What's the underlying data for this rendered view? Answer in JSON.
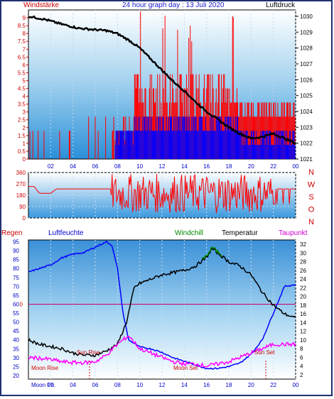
{
  "header": {
    "title": "24 hour graph day : 13 Juli 2020",
    "left_label": "Windstärke",
    "right_label": "Luftdruck"
  },
  "mid": {
    "directions": [
      "N",
      "W",
      "S",
      "O",
      "N"
    ]
  },
  "bottom_labels": {
    "regen": "Regen",
    "luftfeuchte": "Luftfeuchte",
    "windchill": "Windchill",
    "temperatur": "Temperatur",
    "taupunkt": "Taupunkt",
    "sun_rise": "Sun Rise",
    "sun_set": "Sun Set",
    "moon_rise": "Moon Rise",
    "moon_set": "Moon Set",
    "moon_phase": "Moon Ph."
  },
  "colors": {
    "wind_labels": "#cc0000",
    "title": "#1a1acc",
    "wind_gust": "#ff0000",
    "wind_avg": "#0000ff",
    "pressure": "#000000",
    "humidity": "#0000ff",
    "temperature": "#000000",
    "dewpoint": "#ff00ff",
    "windchill": "#008800",
    "zero_line": "#cc0066"
  },
  "chart_data": [
    {
      "type": "line",
      "name": "wind_and_pressure",
      "x_ticks": [
        "02",
        "04",
        "06",
        "08",
        "10",
        "12",
        "14",
        "16",
        "18",
        "20",
        "22",
        "00"
      ],
      "y_left_ticks": [
        "0",
        "0.5",
        "1",
        "1.5",
        "2",
        "2.5",
        "3",
        "3.5",
        "4",
        "4.5",
        "5",
        "5.5",
        "6",
        "6.5",
        "7",
        "7.5",
        "8",
        "8.5",
        "9"
      ],
      "y_left_lim": [
        0,
        9.5
      ],
      "y_right_ticks": [
        "1021",
        "1022",
        "1023",
        "1024",
        "1025",
        "1026",
        "1027",
        "1028",
        "1029",
        "1030"
      ],
      "y_right_lim": [
        1021,
        1030.4
      ],
      "series": [
        {
          "axis": "right",
          "points": [
            [
              0,
              1030
            ],
            [
              1.5,
              1029.8
            ],
            [
              3,
              1029.5
            ],
            [
              4.5,
              1029.25
            ],
            [
              6,
              1029.15
            ],
            [
              7,
              1029.1
            ],
            [
              8,
              1028.9
            ],
            [
              9,
              1028.5
            ],
            [
              10,
              1028.0
            ],
            [
              11,
              1027.3
            ],
            [
              12,
              1026.6
            ],
            [
              13,
              1025.9
            ],
            [
              14,
              1025.3
            ],
            [
              15,
              1024.6
            ],
            [
              16,
              1024.0
            ],
            [
              17,
              1023.5
            ],
            [
              18,
              1023.0
            ],
            [
              19,
              1022.6
            ],
            [
              20,
              1022.3
            ],
            [
              21,
              1022.4
            ],
            [
              22,
              1022.6
            ],
            [
              23,
              1022.3
            ],
            [
              24,
              1022.0
            ]
          ]
        }
      ]
    },
    {
      "type": "line",
      "name": "wind_direction",
      "y_ticks": [
        "0",
        "90",
        "180",
        "270",
        "360"
      ],
      "y_lim": [
        0,
        360
      ],
      "series": [
        {
          "points": [
            [
              0,
              250
            ],
            [
              0.5,
              250
            ],
            [
              1,
              195
            ],
            [
              2,
              195
            ],
            [
              2.5,
              230
            ],
            [
              7.4,
              230
            ],
            [
              7.5,
              230
            ],
            [
              8,
              90
            ],
            [
              9,
              330
            ],
            [
              10,
              60
            ],
            [
              11,
              300
            ],
            [
              12,
              90
            ],
            [
              13,
              270
            ],
            [
              14,
              60
            ],
            [
              15,
              330
            ],
            [
              16,
              150
            ],
            [
              17,
              300
            ],
            [
              18,
              80
            ],
            [
              19,
              320
            ],
            [
              20,
              120
            ],
            [
              21,
              280
            ],
            [
              22,
              230
            ],
            [
              23,
              230
            ],
            [
              24,
              230
            ]
          ]
        }
      ]
    },
    {
      "type": "line",
      "name": "temperature_humidity",
      "y_left_ticks": [
        "20",
        "25",
        "30",
        "35",
        "40",
        "45",
        "50",
        "55",
        "60",
        "65",
        "70",
        "75",
        "80",
        "85",
        "90",
        "95"
      ],
      "y_left_lim": [
        18,
        96
      ],
      "y_right_ticks": [
        "2",
        "4",
        "6",
        "8",
        "10",
        "12",
        "14",
        "16",
        "18",
        "20",
        "22",
        "24",
        "26",
        "28",
        "30",
        "32"
      ],
      "y_right_lim": [
        1,
        33
      ],
      "zero_line_label": "0",
      "series": [
        {
          "axis": "left",
          "points": [
            [
              0,
              78
            ],
            [
              1,
              80
            ],
            [
              2,
              82
            ],
            [
              3,
              86
            ],
            [
              4,
              88
            ],
            [
              5,
              89
            ],
            [
              6,
              92
            ],
            [
              7,
              95
            ],
            [
              7.5,
              93
            ],
            [
              8,
              80
            ],
            [
              8.5,
              55
            ],
            [
              9,
              40
            ],
            [
              10,
              36
            ],
            [
              11,
              35
            ],
            [
              12,
              33
            ],
            [
              13,
              30
            ],
            [
              14,
              28
            ],
            [
              15,
              26
            ],
            [
              16,
              24
            ],
            [
              17,
              24
            ],
            [
              18,
              25
            ],
            [
              19,
              27
            ],
            [
              20,
              32
            ],
            [
              21,
              40
            ],
            [
              22,
              55
            ],
            [
              23,
              70
            ],
            [
              24,
              71
            ]
          ]
        },
        {
          "axis": "right",
          "points": [
            [
              0,
              10
            ],
            [
              1,
              9
            ],
            [
              2,
              8.5
            ],
            [
              3,
              8
            ],
            [
              4,
              7
            ],
            [
              5,
              6.5
            ],
            [
              6,
              6.5
            ],
            [
              7,
              7.5
            ],
            [
              8,
              9
            ],
            [
              8.8,
              14
            ],
            [
              9.5,
              22
            ],
            [
              10,
              23
            ],
            [
              11,
              24
            ],
            [
              12,
              25
            ],
            [
              13,
              25.5
            ],
            [
              14,
              26
            ],
            [
              15,
              27
            ],
            [
              16,
              29
            ],
            [
              16.5,
              31
            ],
            [
              17,
              30
            ],
            [
              17.5,
              29
            ],
            [
              18,
              28
            ],
            [
              19,
              27
            ],
            [
              20,
              25
            ],
            [
              21,
              21
            ],
            [
              22,
              18
            ],
            [
              23,
              16
            ],
            [
              24,
              15
            ]
          ]
        },
        {
          "axis": "right",
          "points": [
            [
              0,
              6
            ],
            [
              1,
              5.8
            ],
            [
              2,
              5.5
            ],
            [
              3,
              5
            ],
            [
              4,
              4.8
            ],
            [
              5,
              4.8
            ],
            [
              6,
              5
            ],
            [
              7,
              6.5
            ],
            [
              8,
              9
            ],
            [
              9,
              11
            ],
            [
              10,
              8
            ],
            [
              11,
              7
            ],
            [
              12,
              6
            ],
            [
              13,
              5
            ],
            [
              14,
              4.5
            ],
            [
              15,
              4.5
            ],
            [
              16,
              4
            ],
            [
              17,
              4.5
            ],
            [
              18,
              5
            ],
            [
              19,
              6
            ],
            [
              20,
              7
            ],
            [
              21,
              8
            ],
            [
              22,
              9
            ],
            [
              23,
              9
            ],
            [
              24,
              9
            ]
          ]
        }
      ]
    }
  ]
}
